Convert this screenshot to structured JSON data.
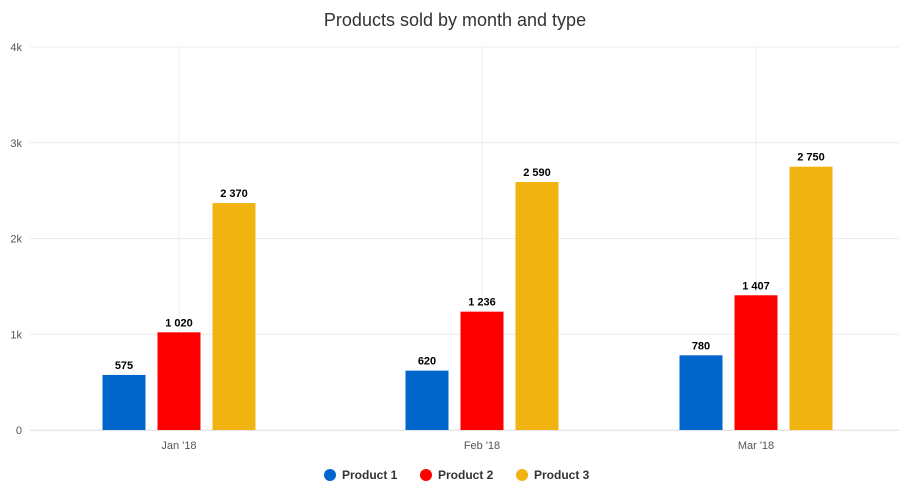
{
  "chart_data": {
    "type": "bar",
    "title": "Products sold by month and type",
    "categories": [
      "Jan '18",
      "Feb '18",
      "Mar '18"
    ],
    "series": [
      {
        "name": "Product 1",
        "color": "#0066cc",
        "values": [
          575,
          620,
          780
        ],
        "labels": [
          "575",
          "620",
          "780"
        ]
      },
      {
        "name": "Product 2",
        "color": "#ff0000",
        "values": [
          1020,
          1236,
          1407
        ],
        "labels": [
          "1 020",
          "1 236",
          "1 407"
        ]
      },
      {
        "name": "Product 3",
        "color": "#f0b30f",
        "values": [
          2370,
          2590,
          2750
        ],
        "labels": [
          "2 370",
          "2 590",
          "2 750"
        ]
      }
    ],
    "y_ticks": [
      {
        "value": 0,
        "label": "0"
      },
      {
        "value": 1000,
        "label": "1k"
      },
      {
        "value": 2000,
        "label": "2k"
      },
      {
        "value": 3000,
        "label": "3k"
      },
      {
        "value": 4000,
        "label": "4k"
      }
    ],
    "ylim": [
      0,
      4000
    ],
    "grid": true,
    "legend_position": "bottom-center"
  }
}
